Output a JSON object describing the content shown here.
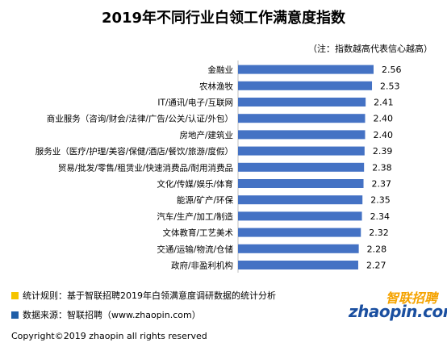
{
  "chart_data": {
    "type": "bar",
    "orientation": "horizontal",
    "title": "2019年不同行业白领工作满意度指数",
    "note": "（注：指数越高代表信心越高）",
    "categories": [
      "金融业",
      "农林渔牧",
      "IT/通讯/电子/互联网",
      "商业服务（咨询/财会/法律/广告/公关/认证/外包）",
      "房地产/建筑业",
      "服务业（医疗/护理/美容/保健/酒店/餐饮/旅游/度假）",
      "贸易/批发/零售/租赁业/快速消费品/耐用消费品",
      "文化/传媒/娱乐/体育",
      "能源/矿产/环保",
      "汽车/生产/加工/制造",
      "文体教育/工艺美术",
      "交通/运输/物流/仓储",
      "政府/非盈利机构"
    ],
    "values": [
      2.56,
      2.53,
      2.41,
      2.4,
      2.4,
      2.39,
      2.38,
      2.37,
      2.35,
      2.34,
      2.32,
      2.28,
      2.27
    ],
    "value_labels": [
      "2.56",
      "2.53",
      "2.41",
      "2.40",
      "2.40",
      "2.39",
      "2.38",
      "2.37",
      "2.35",
      "2.34",
      "2.32",
      "2.28",
      "2.27"
    ],
    "bar_color": "#4472c4",
    "grid": false,
    "legend": "none"
  },
  "footer": {
    "rule_text": "统计规则：基于智联招聘2019年白领满意度调研数据的统计分析",
    "rule_color": "#f5c400",
    "source_text": "数据来源：智联招聘（www.zhaopin.com）",
    "source_color": "#1f5ea8",
    "copyright": "Copyright©2019 zhaopin all rights reserved"
  },
  "logo": {
    "cn": "智联招聘",
    "en": "zhaopin.com"
  }
}
